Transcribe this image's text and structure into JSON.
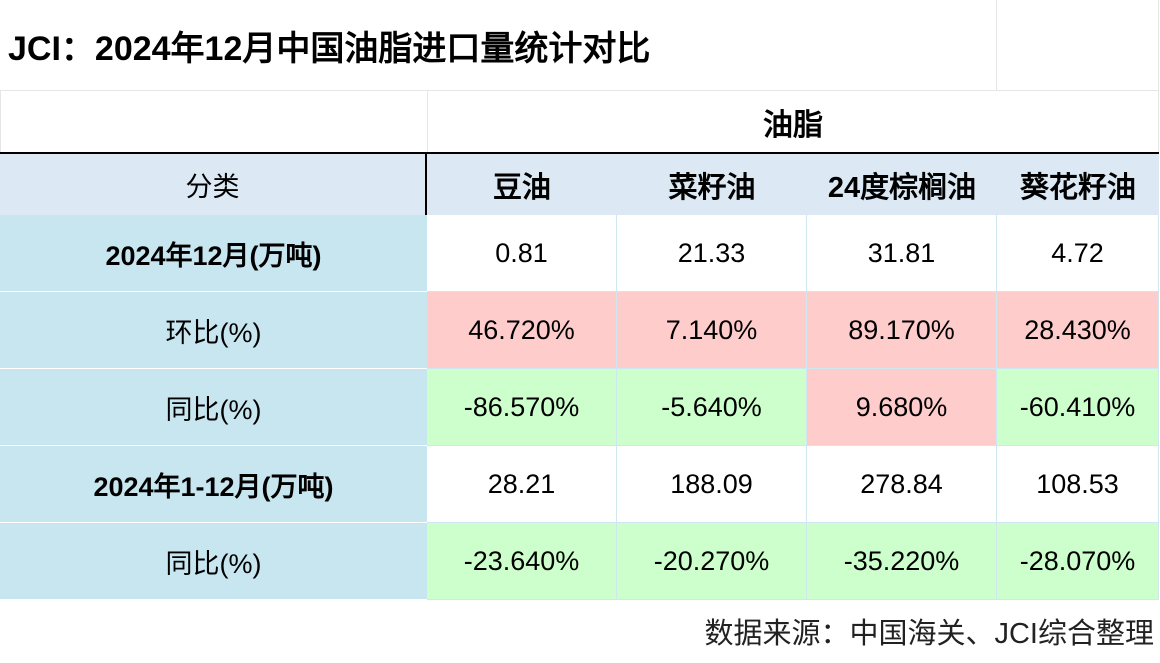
{
  "title": "JCI：2024年12月中国油脂进口量统计对比",
  "group_header": "油脂",
  "category_header": "分类",
  "columns": [
    "豆油",
    "菜籽油",
    "24度棕榈油",
    "葵花籽油"
  ],
  "rows": [
    {
      "label": "2024年12月(万吨)",
      "bold": true,
      "values": [
        "0.81",
        "21.33",
        "31.81",
        "4.72"
      ],
      "colors": [
        "none",
        "none",
        "none",
        "none"
      ]
    },
    {
      "label": "环比(%)",
      "bold": false,
      "values": [
        "46.720%",
        "7.140%",
        "89.170%",
        "28.430%"
      ],
      "colors": [
        "pos",
        "pos",
        "pos",
        "pos"
      ]
    },
    {
      "label": "同比(%)",
      "bold": false,
      "values": [
        "-86.570%",
        "-5.640%",
        "9.680%",
        "-60.410%"
      ],
      "colors": [
        "neg",
        "neg",
        "pos",
        "neg"
      ]
    },
    {
      "label": "2024年1-12月(万吨)",
      "bold": true,
      "values": [
        "28.21",
        "188.09",
        "278.84",
        "108.53"
      ],
      "colors": [
        "none",
        "none",
        "none",
        "none"
      ]
    },
    {
      "label": "同比(%)",
      "bold": false,
      "values": [
        "-23.640%",
        "-20.270%",
        "-35.220%",
        "-28.070%"
      ],
      "colors": [
        "neg",
        "neg",
        "neg",
        "neg"
      ]
    }
  ],
  "colors": {
    "increase": "#ffcccc",
    "decrease": "#ccffcc",
    "label_bg": "#c8e6f0",
    "header_bg": "#dce9f4"
  },
  "source": "数据来源：中国海关、JCI综合整理"
}
